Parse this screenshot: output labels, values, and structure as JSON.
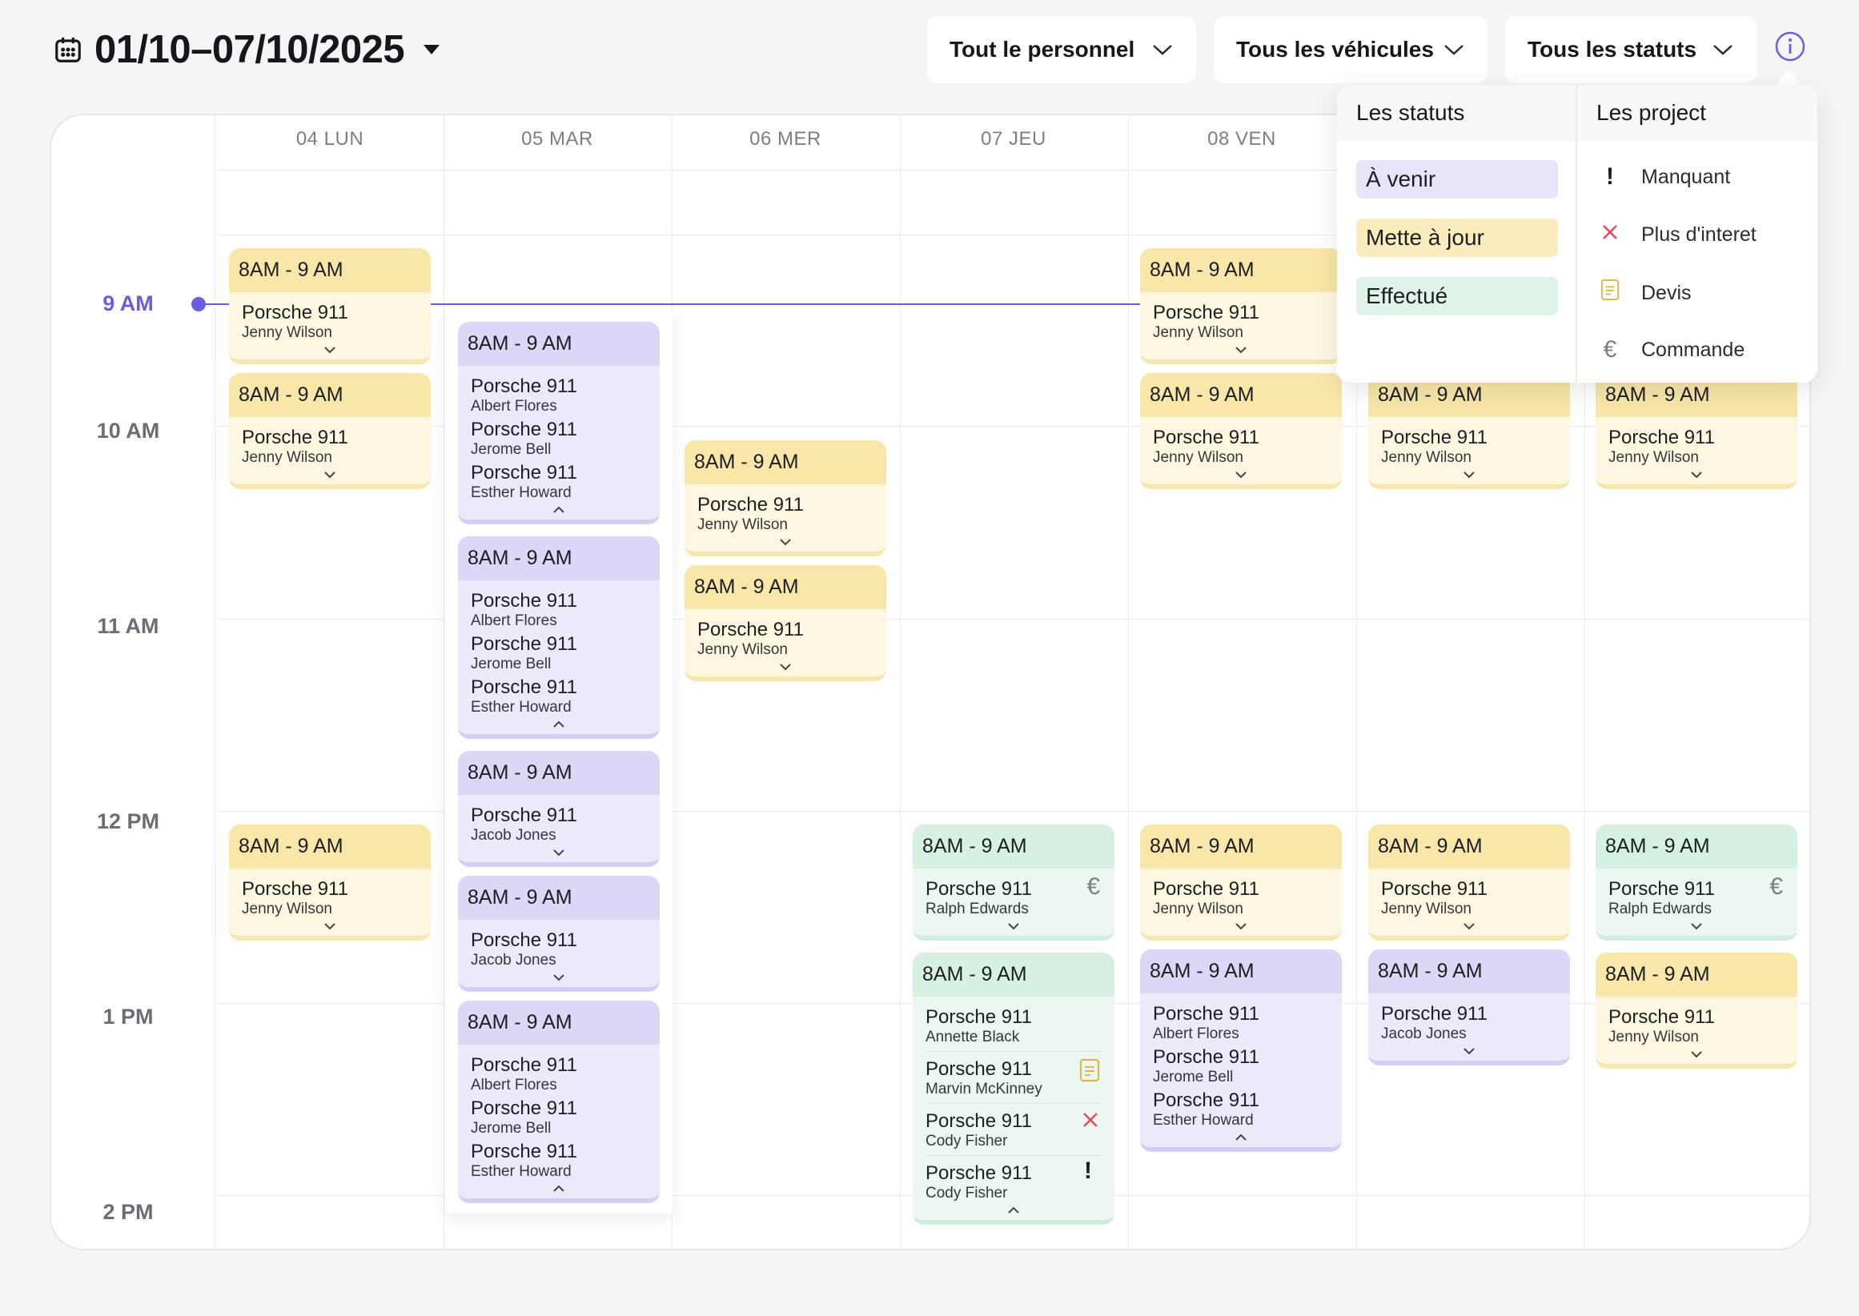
{
  "header": {
    "date_range": "01/10–07/10/2025",
    "filters": [
      "Tout le personnel",
      "Tous les véhicules",
      "Tous les statuts"
    ]
  },
  "days": [
    "04 LUN",
    "05 MAR",
    "06 MER",
    "07 JEU",
    "08 VEN"
  ],
  "hours": [
    "9 AM",
    "10 AM",
    "11 AM",
    "12 PM",
    "1 PM",
    "2 PM"
  ],
  "colors": {
    "accent": "#6b5de0",
    "a_venir": "#dcd6f7",
    "mette_a_jour": "#f8e7a8",
    "effectue": "#d6f0e2",
    "plus_interet": "#e5484d",
    "devis": "#e0b84a"
  },
  "legend": {
    "statuses_title": "Les statuts",
    "statuses": [
      "À venir",
      "Mette à jour",
      "Effectué"
    ],
    "projects_title": "Les project",
    "projects": [
      {
        "icon": "exclamation-icon",
        "label": "Manquant"
      },
      {
        "icon": "cross-icon",
        "label": "Plus d'interet"
      },
      {
        "icon": "document-icon",
        "label": "Devis"
      },
      {
        "icon": "euro-icon",
        "label": "Commande"
      }
    ]
  },
  "events": [
    {
      "time": "8AM - 9 AM",
      "items": [
        {
          "car": "Porsche 911",
          "person": "Jenny Wilson"
        }
      ]
    },
    {
      "time": "8AM - 9 AM",
      "items": [
        {
          "car": "Porsche 911",
          "person": "Jenny Wilson"
        }
      ]
    },
    {
      "time": "8AM - 9 AM",
      "items": [
        {
          "car": "Porsche 911",
          "person": "Jenny Wilson"
        }
      ]
    },
    {
      "time": "8AM - 9 AM",
      "items": [
        {
          "car": "Porsche 911",
          "person": "Albert Flores"
        },
        {
          "car": "Porsche 911",
          "person": "Jerome Bell"
        },
        {
          "car": "Porsche 911",
          "person": "Esther Howard"
        }
      ]
    },
    {
      "time": "8AM - 9 AM",
      "items": [
        {
          "car": "Porsche 911",
          "person": "Albert Flores"
        },
        {
          "car": "Porsche 911",
          "person": "Jerome Bell"
        },
        {
          "car": "Porsche 911",
          "person": "Esther Howard"
        }
      ]
    },
    {
      "time": "8AM - 9 AM",
      "items": [
        {
          "car": "Porsche 911",
          "person": "Jacob Jones"
        }
      ]
    },
    {
      "time": "8AM - 9 AM",
      "items": [
        {
          "car": "Porsche 911",
          "person": "Jacob Jones"
        }
      ]
    },
    {
      "time": "8AM - 9 AM",
      "items": [
        {
          "car": "Porsche 911",
          "person": "Albert Flores"
        },
        {
          "car": "Porsche 911",
          "person": "Jerome Bell"
        },
        {
          "car": "Porsche 911",
          "person": "Esther Howard"
        }
      ]
    },
    {
      "time": "8AM - 9 AM",
      "items": [
        {
          "car": "Porsche 911",
          "person": "Jenny Wilson"
        }
      ]
    },
    {
      "time": "8AM - 9 AM",
      "items": [
        {
          "car": "Porsche 911",
          "person": "Jenny Wilson"
        }
      ]
    },
    {
      "time": "8AM - 9 AM",
      "items": [
        {
          "car": "Porsche 911",
          "person": "Ralph Edwards"
        }
      ]
    },
    {
      "time": "8AM - 9 AM",
      "items": [
        {
          "car": "Porsche 911",
          "person": "Annette Black"
        },
        {
          "car": "Porsche 911",
          "person": "Marvin McKinney"
        },
        {
          "car": "Porsche 911",
          "person": "Cody Fisher"
        },
        {
          "car": "Porsche 911",
          "person": "Cody Fisher"
        }
      ]
    },
    {
      "time": "8AM - 9 AM",
      "items": [
        {
          "car": "Porsche 911",
          "person": "Jenny Wilson"
        }
      ]
    },
    {
      "time": "8AM - 9 AM",
      "items": [
        {
          "car": "Porsche 911",
          "person": "Jenny Wilson"
        }
      ]
    },
    {
      "time": "8AM - 9 AM",
      "items": [
        {
          "car": "Porsche 911",
          "person": "Jenny Wilson"
        }
      ]
    },
    {
      "time": "8AM - 9 AM",
      "items": [
        {
          "car": "Porsche 911",
          "person": "Albert Flores"
        },
        {
          "car": "Porsche 911",
          "person": "Jerome Bell"
        },
        {
          "car": "Porsche 911",
          "person": "Esther Howard"
        }
      ]
    },
    {
      "time": "8AM - 9 AM",
      "items": [
        {
          "car": "Porsche 911",
          "person": "Jenny Wilson"
        }
      ]
    },
    {
      "time": "8AM - 9 AM",
      "items": [
        {
          "car": "Porsche 911",
          "person": "Jenny Wilson"
        }
      ]
    },
    {
      "time": "8AM - 9 AM",
      "items": [
        {
          "car": "Porsche 911",
          "person": "Jacob Jones"
        }
      ]
    },
    {
      "time": "8AM - 9 AM",
      "items": [
        {
          "car": "Porsche 911",
          "person": "Jenny Wilson"
        }
      ]
    },
    {
      "time": "8AM - 9 AM",
      "items": [
        {
          "car": "Porsche 911",
          "person": "Ralph Edwards"
        }
      ]
    },
    {
      "time": "8AM - 9 AM",
      "items": [
        {
          "car": "Porsche 911",
          "person": "Jenny Wilson"
        }
      ]
    }
  ]
}
